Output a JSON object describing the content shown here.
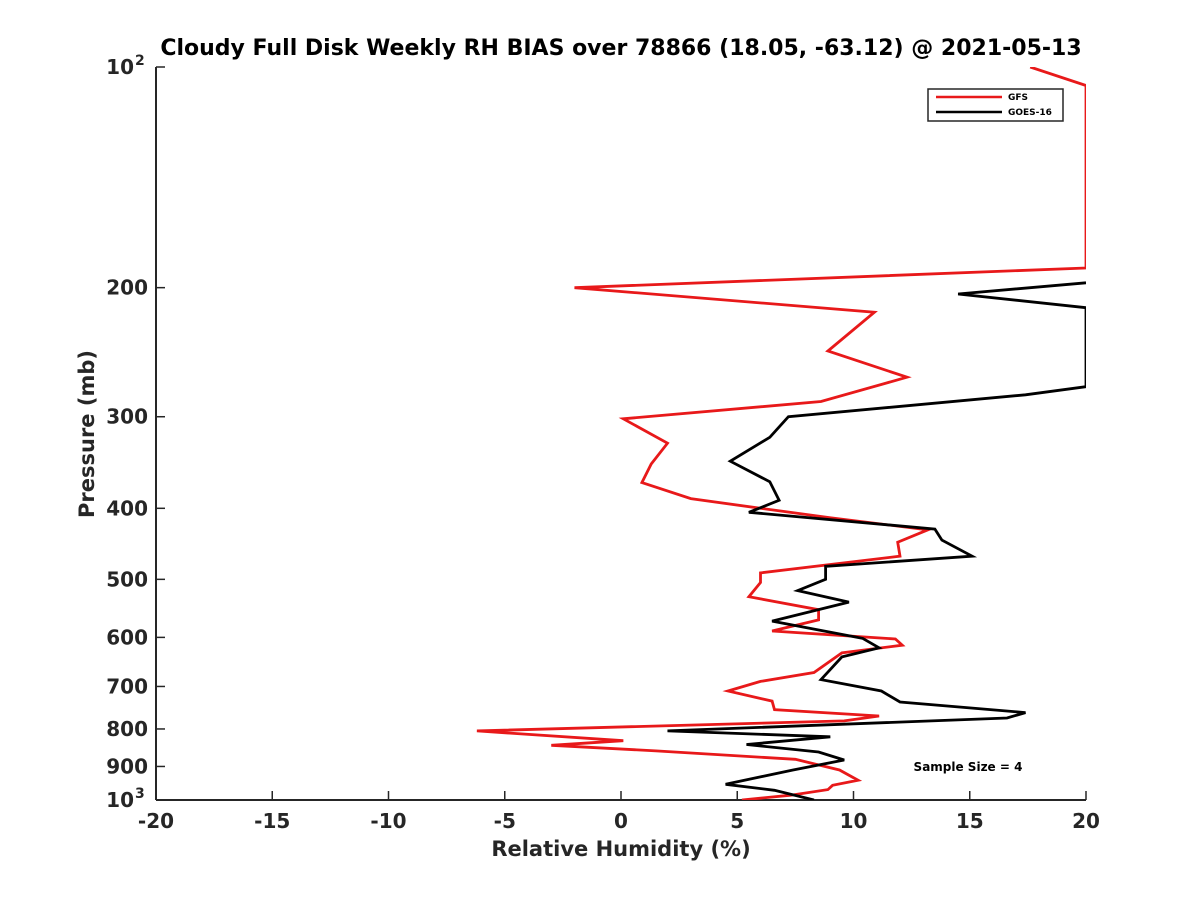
{
  "chart_data": {
    "type": "line",
    "title": "Cloudy Full Disk Weekly RH BIAS over 78866 (18.05, -63.12) @ 2021-05-13",
    "xlabel": "Relative Humidity (%)",
    "ylabel": "Pressure (mb)",
    "xlim": [
      -20,
      20
    ],
    "ylim": [
      100,
      1000
    ],
    "y_scale": "log",
    "y_reversed": true,
    "x_ticks": [
      "-20",
      "-15",
      "-10",
      "-5",
      "0",
      "5",
      "10",
      "15",
      "20"
    ],
    "y_ticks": [
      {
        "value": 100,
        "base": "10",
        "exp": "2"
      },
      {
        "value": 200,
        "label": "200"
      },
      {
        "value": 300,
        "label": "300"
      },
      {
        "value": 400,
        "label": "400"
      },
      {
        "value": 500,
        "label": "500"
      },
      {
        "value": 600,
        "label": "600"
      },
      {
        "value": 700,
        "label": "700"
      },
      {
        "value": 800,
        "label": "800"
      },
      {
        "value": 900,
        "label": "900"
      },
      {
        "value": 1000,
        "base": "10",
        "exp": "3"
      }
    ],
    "legend_position": "top-right",
    "annotation": "Sample Size = 4",
    "series": [
      {
        "name": "GFS",
        "color": "#e8191a",
        "points": [
          [
            17.6,
            100
          ],
          [
            20.0,
            106
          ],
          [
            20.0,
            188
          ],
          [
            -2.0,
            200
          ],
          [
            10.9,
            216
          ],
          [
            8.9,
            244
          ],
          [
            12.3,
            265
          ],
          [
            8.6,
            286
          ],
          [
            0.1,
            302
          ],
          [
            2.0,
            326
          ],
          [
            1.3,
            348
          ],
          [
            0.9,
            369
          ],
          [
            3.0,
            388
          ],
          [
            6.0,
            400
          ],
          [
            9.0,
            412
          ],
          [
            13.2,
            428
          ],
          [
            11.9,
            445
          ],
          [
            12.0,
            465
          ],
          [
            6.0,
            490
          ],
          [
            6.0,
            505
          ],
          [
            5.5,
            528
          ],
          [
            8.5,
            550
          ],
          [
            8.5,
            568
          ],
          [
            6.5,
            588
          ],
          [
            11.8,
            603
          ],
          [
            12.1,
            615
          ],
          [
            9.5,
            630
          ],
          [
            8.3,
            670
          ],
          [
            6.0,
            689
          ],
          [
            4.6,
            710
          ],
          [
            6.5,
            733
          ],
          [
            6.6,
            753
          ],
          [
            11.1,
            768
          ],
          [
            9.6,
            780
          ],
          [
            -6.2,
            805
          ],
          [
            0.1,
            830
          ],
          [
            -3.0,
            842
          ],
          [
            1.5,
            857
          ],
          [
            7.5,
            880
          ],
          [
            9.4,
            910
          ],
          [
            10.2,
            940
          ],
          [
            9.1,
            955
          ],
          [
            8.9,
            968
          ],
          [
            7.3,
            985
          ],
          [
            5.2,
            1000
          ]
        ]
      },
      {
        "name": "GOES-16",
        "color": "#000000",
        "points": [
          [
            20.0,
            197
          ],
          [
            14.5,
            204
          ],
          [
            20.0,
            213
          ],
          [
            20.0,
            273
          ],
          [
            17.4,
            280
          ],
          [
            7.2,
            300
          ],
          [
            6.4,
            320
          ],
          [
            4.7,
            345
          ],
          [
            6.4,
            368
          ],
          [
            6.8,
            390
          ],
          [
            5.5,
            405
          ],
          [
            13.5,
            427
          ],
          [
            13.8,
            442
          ],
          [
            15.1,
            465
          ],
          [
            8.8,
            480
          ],
          [
            8.8,
            500
          ],
          [
            7.6,
            518
          ],
          [
            9.8,
            537
          ],
          [
            6.5,
            570
          ],
          [
            10.4,
            602
          ],
          [
            11.1,
            620
          ],
          [
            9.5,
            638
          ],
          [
            8.6,
            685
          ],
          [
            11.2,
            710
          ],
          [
            12.0,
            735
          ],
          [
            17.4,
            760
          ],
          [
            16.6,
            773
          ],
          [
            2.0,
            805
          ],
          [
            9.0,
            820
          ],
          [
            5.4,
            840
          ],
          [
            8.5,
            860
          ],
          [
            9.6,
            882
          ],
          [
            7.4,
            910
          ],
          [
            4.5,
            952
          ],
          [
            6.6,
            970
          ],
          [
            8.3,
            1000
          ]
        ]
      }
    ]
  }
}
